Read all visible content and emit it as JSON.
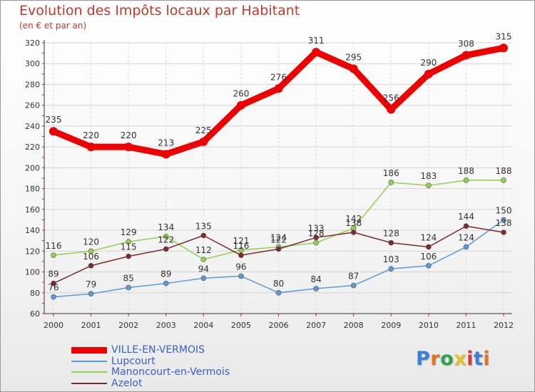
{
  "header": {
    "title": "Evolution des Impôts locaux par Habitant",
    "subtitle": "(en € et par an)"
  },
  "logo": {
    "text": "Proxiti",
    "letter_colors": [
      "#3b7dd8",
      "#e2742a",
      "#2aa34a",
      "#e2c22a",
      "#d93a3a",
      "#3b7dd8",
      "#e2742a"
    ]
  },
  "chart_data": {
    "type": "line",
    "title": "Evolution des Impôts locaux par Habitant",
    "subtitle": "(en € et par an)",
    "x": [
      "2000",
      "2001",
      "2002",
      "2003",
      "2004",
      "2005",
      "2006",
      "2007",
      "2008",
      "2009",
      "2010",
      "2011",
      "2012"
    ],
    "ylim": [
      60,
      320
    ],
    "yticks": [
      60,
      80,
      100,
      120,
      140,
      160,
      180,
      200,
      220,
      240,
      260,
      280,
      300,
      320
    ],
    "grid": true,
    "legend_position": "bottom-left",
    "series": [
      {
        "name": "VILLE-EN-VERMOIS",
        "color": "#ee0000",
        "width": 9,
        "marker": 6,
        "values": [
          235,
          220,
          220,
          213,
          225,
          260,
          276,
          311,
          295,
          256,
          290,
          308,
          315
        ]
      },
      {
        "name": "Lupcourt",
        "color": "#5b9bd5",
        "width": 1.5,
        "marker": 3.5,
        "values": [
          76,
          79,
          85,
          89,
          94,
          96,
          80,
          84,
          87,
          103,
          106,
          124,
          150
        ]
      },
      {
        "name": "Manoncourt-en-Vermois",
        "color": "#92d050",
        "width": 1.5,
        "marker": 3.5,
        "values": [
          116,
          120,
          129,
          134,
          112,
          121,
          124,
          128,
          142,
          186,
          183,
          188,
          188
        ]
      },
      {
        "name": "Azelot",
        "color": "#7b2c2c",
        "width": 1.5,
        "marker": 3.5,
        "values": [
          89,
          106,
          115,
          122,
          135,
          116,
          122,
          133,
          138,
          128,
          124,
          144,
          138
        ]
      }
    ]
  }
}
